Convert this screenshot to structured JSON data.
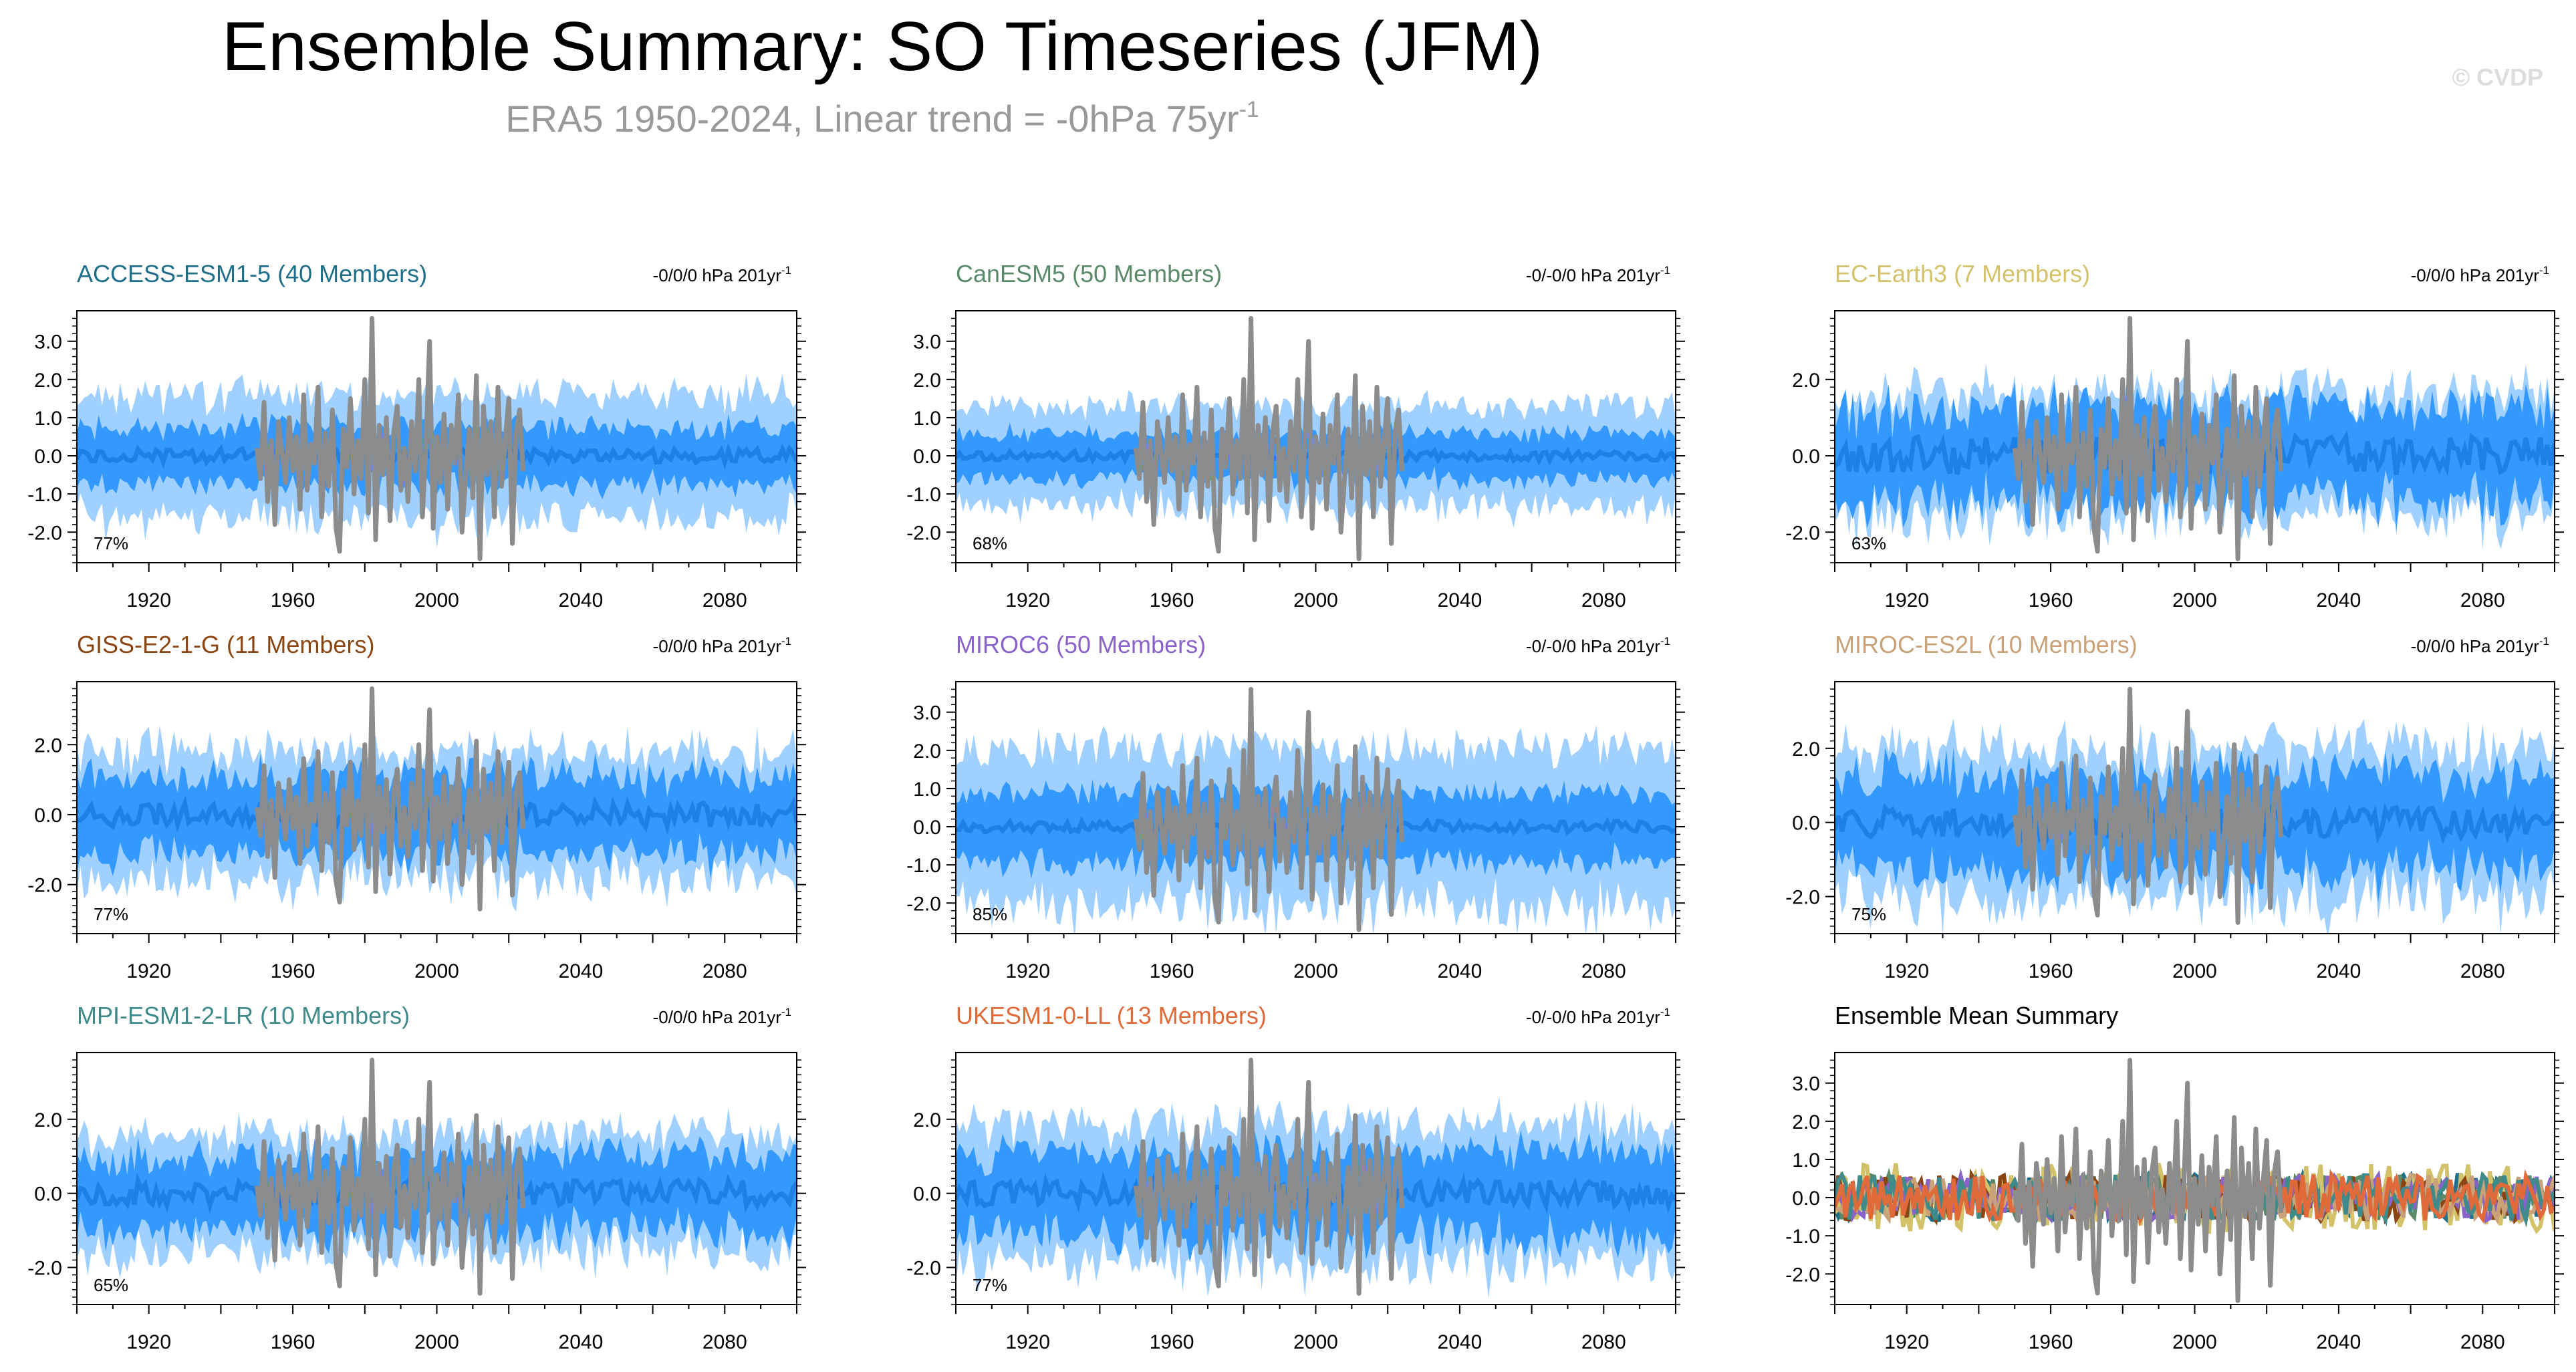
{
  "title": "Ensemble Summary: SO Timeseries (JFM)",
  "subtitle": {
    "text": "ERA5 1950-2024, Linear trend = -0hPa 75yr",
    "superscript": "-1"
  },
  "watermark": "© CVDP",
  "colors": {
    "outer_band": "#9fd0ff",
    "inner_band": "#3399ff",
    "ensemble_mean": "#1e7fe6",
    "observations": "#8c8c8c",
    "subtitle": "#999999",
    "watermark": "#dddddd"
  },
  "chart_data": [
    {
      "type": "area",
      "model": "ACCESS-ESM1-5",
      "title": "ACCESS-ESM1-5 (40 Members)",
      "title_color": "#1f6f8b",
      "trend": "-0/0/0 hPa 201yr",
      "trend_sup": "-1",
      "percent": "77%",
      "ylim": [
        -2.8,
        3.8
      ],
      "yticks": [
        -2,
        -1,
        0,
        1,
        2,
        3
      ],
      "ytick_labels": [
        "-2.0",
        "-1.0",
        "0.0",
        "1.0",
        "2.0",
        "3.0"
      ],
      "xlim": [
        1900,
        2100
      ],
      "xticks": [
        1920,
        1960,
        2000,
        2040,
        2080
      ],
      "outer_amp": 1.6,
      "inner_amp": 0.75,
      "mean_amp": 0.18,
      "seed": 11
    },
    {
      "type": "area",
      "model": "CanESM5",
      "title": "CanESM5 (50 Members)",
      "title_color": "#5a8a6a",
      "trend": "-0/-0/0 hPa 201yr",
      "trend_sup": "-1",
      "percent": "68%",
      "ylim": [
        -2.8,
        3.8
      ],
      "yticks": [
        -2,
        -1,
        0,
        1,
        2,
        3
      ],
      "ytick_labels": [
        "-2.0",
        "-1.0",
        "0.0",
        "1.0",
        "2.0",
        "3.0"
      ],
      "xlim": [
        1900,
        2100
      ],
      "xticks": [
        1920,
        1960,
        2000,
        2040,
        2080
      ],
      "outer_amp": 1.3,
      "inner_amp": 0.6,
      "mean_amp": 0.12,
      "seed": 23
    },
    {
      "type": "area",
      "model": "EC-Earth3",
      "title": "EC-Earth3 (7 Members)",
      "title_color": "#d4c26a",
      "trend": "-0/0/0 hPa 201yr",
      "trend_sup": "-1",
      "percent": "63%",
      "ylim": [
        -2.8,
        3.8
      ],
      "yticks": [
        -2,
        0,
        2
      ],
      "ytick_labels": [
        "-2.0",
        "0.0",
        "2.0"
      ],
      "xlim": [
        1900,
        2100
      ],
      "xticks": [
        1920,
        1960,
        2000,
        2040,
        2080
      ],
      "outer_amp": 1.6,
      "inner_amp": 1.2,
      "mean_amp": 0.5,
      "seed": 37
    },
    {
      "type": "area",
      "model": "GISS-E2-1-G",
      "title": "GISS-E2-1-G (11 Members)",
      "title_color": "#8b4513",
      "trend": "-0/0/0 hPa 201yr",
      "trend_sup": "-1",
      "percent": "77%",
      "ylim": [
        -3.4,
        3.8
      ],
      "yticks": [
        -2,
        0,
        2
      ],
      "ytick_labels": [
        "-2.0",
        "0.0",
        "2.0"
      ],
      "xlim": [
        1900,
        2100
      ],
      "xticks": [
        1920,
        1960,
        2000,
        2040,
        2080
      ],
      "outer_amp": 1.8,
      "inner_amp": 1.1,
      "mean_amp": 0.35,
      "seed": 41
    },
    {
      "type": "area",
      "model": "MIROC6",
      "title": "MIROC6 (50 Members)",
      "title_color": "#8a63c9",
      "trend": "-0/-0/0 hPa 201yr",
      "trend_sup": "-1",
      "percent": "85%",
      "ylim": [
        -2.8,
        3.8
      ],
      "yticks": [
        -2,
        -1,
        0,
        1,
        2,
        3
      ],
      "ytick_labels": [
        "-2.0",
        "-1.0",
        "0.0",
        "1.0",
        "2.0",
        "3.0"
      ],
      "xlim": [
        1900,
        2100
      ],
      "xticks": [
        1920,
        1960,
        2000,
        2040,
        2080
      ],
      "outer_amp": 2.1,
      "inner_amp": 0.9,
      "mean_amp": 0.15,
      "seed": 53
    },
    {
      "type": "area",
      "model": "MIROC-ES2L",
      "title": "MIROC-ES2L (10 Members)",
      "title_color": "#c9a27a",
      "trend": "-0/0/0 hPa 201yr",
      "trend_sup": "-1",
      "percent": "75%",
      "ylim": [
        -3.0,
        3.8
      ],
      "yticks": [
        -2,
        0,
        2
      ],
      "ytick_labels": [
        "-2.0",
        "0.0",
        "2.0"
      ],
      "xlim": [
        1900,
        2100
      ],
      "xticks": [
        1920,
        1960,
        2000,
        2040,
        2080
      ],
      "outer_amp": 2.0,
      "inner_amp": 1.3,
      "mean_amp": 0.4,
      "seed": 67
    },
    {
      "type": "area",
      "model": "MPI-ESM1-2-LR",
      "title": "MPI-ESM1-2-LR (10 Members)",
      "title_color": "#3f8a8a",
      "trend": "-0/0/0 hPa 201yr",
      "trend_sup": "-1",
      "percent": "65%",
      "ylim": [
        -3.0,
        3.8
      ],
      "yticks": [
        -2,
        0,
        2
      ],
      "ytick_labels": [
        "-2.0",
        "0.0",
        "2.0"
      ],
      "xlim": [
        1900,
        2100
      ],
      "xticks": [
        1920,
        1960,
        2000,
        2040,
        2080
      ],
      "outer_amp": 1.6,
      "inner_amp": 1.0,
      "mean_amp": 0.35,
      "seed": 79
    },
    {
      "type": "area",
      "model": "UKESM1-0-LL",
      "title": "UKESM1-0-LL (13 Members)",
      "title_color": "#e06a3a",
      "trend": "-0/-0/0 hPa 201yr",
      "trend_sup": "-1",
      "percent": "77%",
      "ylim": [
        -3.0,
        3.8
      ],
      "yticks": [
        -2,
        0,
        2
      ],
      "ytick_labels": [
        "-2.0",
        "0.0",
        "2.0"
      ],
      "xlim": [
        1900,
        2100
      ],
      "xticks": [
        1920,
        1960,
        2000,
        2040,
        2080
      ],
      "outer_amp": 1.9,
      "inner_amp": 1.1,
      "mean_amp": 0.35,
      "seed": 83
    },
    {
      "type": "line",
      "model": "summary",
      "title": "Ensemble Mean Summary",
      "title_color": "#000000",
      "trend": "",
      "trend_sup": "",
      "percent": "",
      "ylim": [
        -2.8,
        3.8
      ],
      "yticks": [
        -2,
        -1,
        0,
        1,
        2,
        3
      ],
      "ytick_labels": [
        "-2.0",
        "-1.0",
        "0.0",
        "1.0",
        "2.0",
        "3.0"
      ],
      "xlim": [
        1900,
        2100
      ],
      "xticks": [
        1920,
        1960,
        2000,
        2040,
        2080
      ],
      "series_colors": [
        "#1f6f8b",
        "#5a8a6a",
        "#d4c26a",
        "#8b4513",
        "#8a63c9",
        "#c9a27a",
        "#3f8a8a",
        "#e06a3a"
      ],
      "seed": 97
    }
  ],
  "observations": {
    "name": "ERA5",
    "start_year": 1950,
    "values": [
      0.2,
      -0.6,
      1.4,
      -1.2,
      0.4,
      -1.8,
      0.9,
      0.1,
      -0.7,
      1.0,
      -0.4,
      0.5,
      -1.4,
      1.6,
      -0.9,
      0.3,
      -0.2,
      1.8,
      -1.6,
      0.6,
      -0.8,
      1.2,
      -1.9,
      -2.5,
      0.7,
      -0.3,
      1.5,
      -1.0,
      0.4,
      -0.6,
      2.0,
      -1.5,
      3.6,
      -2.2,
      0.8,
      -0.5,
      1.0,
      -1.7,
      0.6,
      1.3,
      -0.9,
      0.2,
      -1.2,
      0.9,
      -0.4,
      2.0,
      -1.6,
      0.3,
      3.0,
      -1.9,
      0.5,
      -0.7,
      1.1,
      -1.4,
      0.8,
      -0.2,
      1.6,
      -2.0,
      -0.6,
      0.7,
      -1.1,
      2.1,
      -2.7,
      1.3,
      -0.5,
      0.9,
      -1.6,
      1.8,
      -0.8,
      0.4,
      1.5,
      -2.3,
      0.6,
      1.2,
      -0.4
    ]
  }
}
